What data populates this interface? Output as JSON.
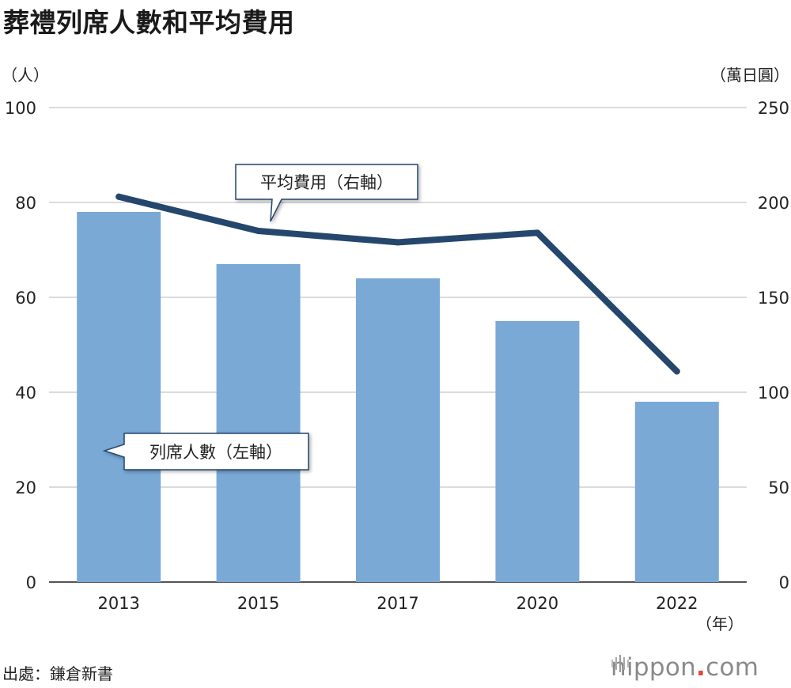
{
  "chart_data": {
    "type": "bar",
    "title": "葬禮列席人數和平均費用",
    "left_axis_unit": "（人）",
    "right_axis_unit": "（萬日圓）",
    "x_unit": "（年）",
    "categories": [
      "2013",
      "2015",
      "2017",
      "2020",
      "2022"
    ],
    "left_ylim": [
      0,
      100
    ],
    "left_ticks": [
      "0",
      "20",
      "40",
      "60",
      "80",
      "100"
    ],
    "right_ylim": [
      0,
      250
    ],
    "right_ticks": [
      "0",
      "50",
      "100",
      "150",
      "200",
      "250"
    ],
    "grid": true,
    "series": [
      {
        "name": "列席人數（左軸）",
        "type": "bar",
        "axis": "left",
        "color": "#7aa9d6",
        "values": [
          78,
          67,
          64,
          55,
          38
        ]
      },
      {
        "name": "平均費用（右軸）",
        "type": "line",
        "axis": "right",
        "color": "#25476d",
        "values": [
          203,
          185,
          179,
          184,
          111
        ]
      }
    ]
  },
  "source": "出處：鎌倉新書",
  "logo": {
    "name": "nippon",
    "dot": ".",
    "tld": "com"
  }
}
